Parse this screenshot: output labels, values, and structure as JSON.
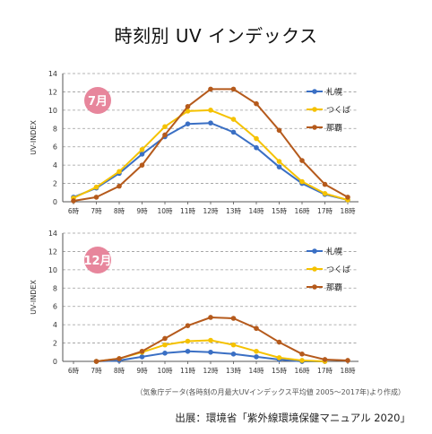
{
  "page": {
    "title": "時刻別 UV インデックス",
    "note": "（気象庁データ(各時刻の月最大UVインデックス平均値 2005～2017年)より作成）",
    "source": "出展：環境省「紫外線環境保健マニュアル 2020」"
  },
  "colors": {
    "sapporo": "#3a6fc4",
    "tsukuba": "#f5c200",
    "naha": "#b55a1c",
    "badge": "#e7869c",
    "grid": "#9a9a9a",
    "axis": "#555555"
  },
  "chart_data": [
    {
      "type": "line",
      "badge": "7月",
      "ylabel": "UV-INDEX",
      "ylim": [
        0,
        14
      ],
      "yticks": [
        "0",
        "2",
        "4",
        "6",
        "8",
        "10",
        "12",
        "14"
      ],
      "categories": [
        "6時",
        "7時",
        "8時",
        "9時",
        "10時",
        "11時",
        "12時",
        "13時",
        "14時",
        "15時",
        "16時",
        "17時",
        "18時"
      ],
      "legend_position": "right",
      "grid": "dashed horizontal",
      "series": [
        {
          "name": "札幌",
          "color_key": "sapporo",
          "values": [
            0.5,
            1.5,
            3.1,
            5.2,
            7.1,
            8.5,
            8.6,
            7.6,
            5.9,
            3.8,
            2.0,
            0.8,
            0.2
          ]
        },
        {
          "name": "つくば",
          "color_key": "tsukuba",
          "values": [
            0.4,
            1.6,
            3.3,
            5.7,
            8.2,
            9.9,
            10.0,
            9.0,
            6.9,
            4.4,
            2.2,
            0.9,
            0.2
          ]
        },
        {
          "name": "那覇",
          "color_key": "naha",
          "values": [
            0.1,
            0.5,
            1.7,
            4.0,
            7.3,
            10.4,
            12.3,
            12.3,
            10.7,
            7.8,
            4.5,
            1.9,
            0.5
          ]
        }
      ]
    },
    {
      "type": "line",
      "badge": "12月",
      "ylabel": "UV-INDEX",
      "ylim": [
        0,
        14
      ],
      "yticks": [
        "0",
        "2",
        "4",
        "6",
        "8",
        "10",
        "12",
        "14"
      ],
      "categories": [
        "6時",
        "7時",
        "8時",
        "9時",
        "10時",
        "11時",
        "12時",
        "13時",
        "14時",
        "15時",
        "16時",
        "17時",
        "18時"
      ],
      "legend_position": "right",
      "grid": "dashed horizontal",
      "series": [
        {
          "name": "札幌",
          "color_key": "sapporo",
          "values": [
            null,
            0.0,
            0.1,
            0.5,
            0.9,
            1.1,
            1.0,
            0.8,
            0.5,
            0.2,
            0.0,
            0.0,
            null
          ]
        },
        {
          "name": "つくば",
          "color_key": "tsukuba",
          "values": [
            null,
            0.0,
            0.3,
            1.0,
            1.8,
            2.2,
            2.3,
            1.8,
            1.1,
            0.4,
            0.1,
            0.0,
            null
          ]
        },
        {
          "name": "那覇",
          "color_key": "naha",
          "values": [
            null,
            0.0,
            0.3,
            1.1,
            2.5,
            3.9,
            4.8,
            4.7,
            3.6,
            2.1,
            0.8,
            0.2,
            0.1
          ]
        }
      ]
    }
  ]
}
